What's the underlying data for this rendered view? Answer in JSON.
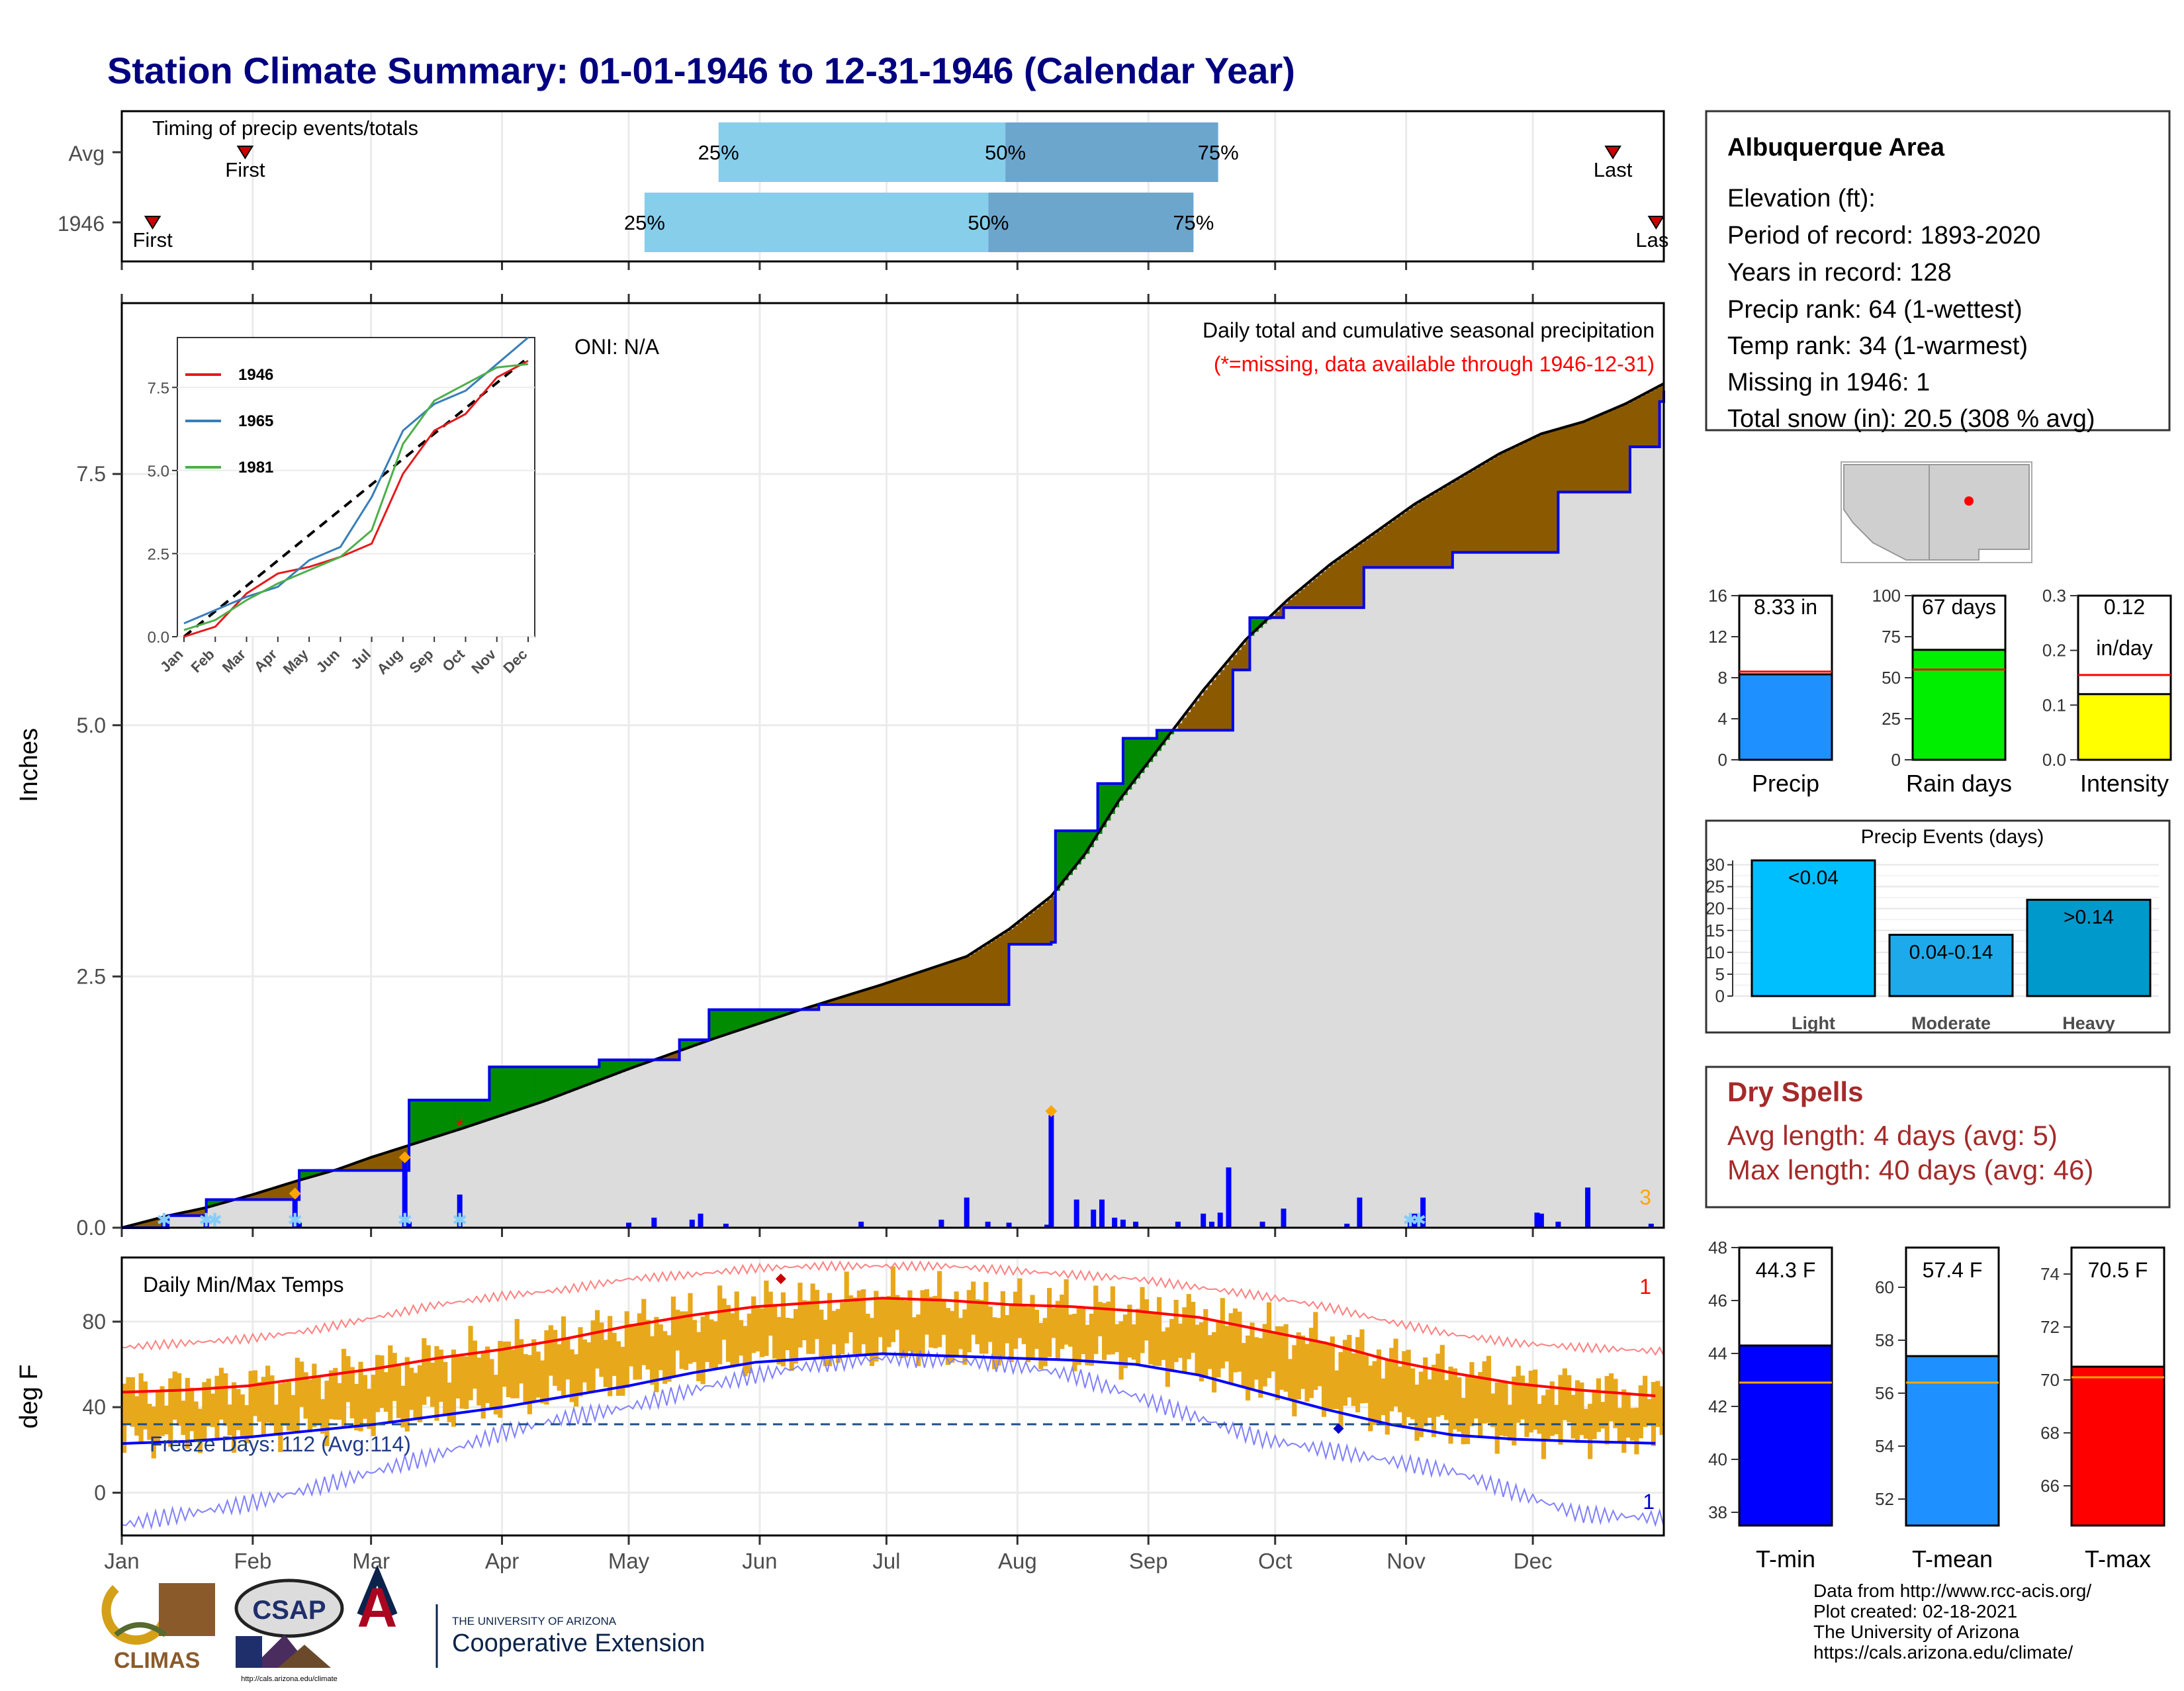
{
  "title": "Station Climate Summary: 01-01-1946 to 12-31-1946 (Calendar Year)",
  "months": [
    "Jan",
    "Feb",
    "Mar",
    "Apr",
    "May",
    "Jun",
    "Jul",
    "Aug",
    "Sep",
    "Oct",
    "Nov",
    "Dec"
  ],
  "timing": {
    "label": "Timing of precip events/totals",
    "rows": [
      {
        "name": "Avg",
        "first": 0.08,
        "p25": 0.387,
        "p50": 0.573,
        "p75": 0.711,
        "last": 0.967
      },
      {
        "name": "1946",
        "first": 0.02,
        "p25": 0.339,
        "p50": 0.562,
        "p75": 0.695,
        "last": 0.995
      }
    ],
    "first_label": "First",
    "last_label": "Last",
    "last_label_clipped": "Las",
    "p25_label": "25%",
    "p50_label": "50%",
    "p75_label": "75%"
  },
  "precip_panel": {
    "ylabel": "Inches",
    "oni": "ONI: N/A",
    "title": "Daily total and cumulative seasonal precipitation",
    "subtitle": "(*=missing, data available through 1946-12-31)",
    "yticks": [
      "0.0",
      "2.5",
      "5.0",
      "7.5"
    ],
    "count_label": "3"
  },
  "inset": {
    "yticks": [
      "0.0",
      "2.5",
      "5.0",
      "7.5"
    ],
    "months": [
      "Jan",
      "Feb",
      "Mar",
      "Apr",
      "May",
      "Jun",
      "Jul",
      "Aug",
      "Sep",
      "Oct",
      "Nov",
      "Dec"
    ],
    "legend": [
      "1946",
      "1965",
      "1981"
    ]
  },
  "temp_panel": {
    "ylabel": "deg F",
    "title": "Daily Min/Max Temps",
    "freeze_label": "Freeze Days: 112 (Avg:114)",
    "yticks": [
      "0",
      "40",
      "80"
    ],
    "count_top": "1",
    "count_bottom": "1"
  },
  "station": {
    "name": "Albuquerque Area",
    "lines": [
      "Elevation (ft):",
      "Period of record: 1893-2020",
      "Years in record: 128",
      "Precip rank: 64 (1-wettest)",
      "Temp rank: 34 (1-warmest)",
      "Missing in 1946: 1",
      "Total snow (in): 20.5 (308 % avg)"
    ]
  },
  "mini_bars": [
    {
      "label": "Precip",
      "value_text": "8.33 in",
      "ticks": [
        "0",
        "4",
        "8",
        "12",
        "16"
      ],
      "color": "#1e90ff"
    },
    {
      "label": "Rain days",
      "value_text": "67 days",
      "ticks": [
        "0",
        "25",
        "50",
        "75",
        "100"
      ],
      "color": "#00ee00"
    },
    {
      "label": "Intensity",
      "value_text": "0.12",
      "value_text2": "in/day",
      "ticks": [
        "0.0",
        "0.1",
        "0.2",
        "0.3"
      ],
      "color": "#ffff00"
    }
  ],
  "events": {
    "title": "Precip Events (days)",
    "categories": [
      "Light",
      "Moderate",
      "Heavy"
    ],
    "labels": [
      "<0.04",
      "0.04-0.14",
      ">0.14"
    ],
    "ticks": [
      "0",
      "5",
      "10",
      "15",
      "20",
      "25",
      "30"
    ]
  },
  "dry_spells": {
    "title": "Dry Spells",
    "avg": "Avg length: 4 days (avg: 5)",
    "max": "Max length: 40 days (avg: 46)"
  },
  "temp_bars": [
    {
      "label": "T-min",
      "value_text": "44.3 F",
      "ticks": [
        "38",
        "40",
        "42",
        "44",
        "46",
        "48"
      ],
      "color": "#0000ff"
    },
    {
      "label": "T-mean",
      "value_text": "57.4 F",
      "ticks": [
        "52",
        "54",
        "56",
        "58",
        "60"
      ],
      "color": "#1e90ff"
    },
    {
      "label": "T-max",
      "value_text": "70.5 F",
      "ticks": [
        "66",
        "68",
        "70",
        "72",
        "74"
      ],
      "color": "#ff0000"
    }
  ],
  "footer": {
    "lines": [
      "Data from http://www.rcc-acis.org/",
      "Plot created: 02-18-2021",
      "The University of Arizona",
      "https://cals.arizona.edu/climate/"
    ]
  },
  "logos": {
    "climas": "CLIMAS",
    "csap": "CSAP",
    "csap_url": "http://cals.arizona.edu/climate",
    "ua_small": "THE UNIVERSITY OF ARIZONA",
    "coop": "Cooperative Extension",
    "ua_letter": "A"
  },
  "chart_data": [
    {
      "type": "area",
      "name": "cumulative precipitation",
      "title": "Daily total and cumulative seasonal precipitation",
      "ylabel": "Inches",
      "ylim": [
        0,
        9.2
      ],
      "observed_1946": [
        [
          0,
          0
        ],
        [
          11,
          0.12
        ],
        [
          20,
          0.28
        ],
        [
          41,
          0.28
        ],
        [
          42,
          0.57
        ],
        [
          67,
          0.57
        ],
        [
          68,
          1.27
        ],
        [
          86,
          1.27
        ],
        [
          87,
          1.6
        ],
        [
          112,
          1.6
        ],
        [
          113,
          1.67
        ],
        [
          131,
          1.67
        ],
        [
          132,
          1.87
        ],
        [
          138,
          1.87
        ],
        [
          139,
          2.17
        ],
        [
          161,
          2.17
        ],
        [
          165,
          2.22
        ],
        [
          210,
          2.82
        ],
        [
          219,
          2.82
        ],
        [
          220,
          2.84
        ],
        [
          221,
          3.95
        ],
        [
          230,
          3.95
        ],
        [
          231,
          4.42
        ],
        [
          236,
          4.42
        ],
        [
          237,
          4.87
        ],
        [
          244,
          4.87
        ],
        [
          245,
          4.95
        ],
        [
          262,
          4.95
        ],
        [
          263,
          5.55
        ],
        [
          266,
          5.55
        ],
        [
          267,
          6.07
        ],
        [
          274,
          6.07
        ],
        [
          275,
          6.17
        ],
        [
          293,
          6.17
        ],
        [
          294,
          6.57
        ],
        [
          314,
          6.57
        ],
        [
          315,
          6.72
        ],
        [
          339,
          6.72
        ],
        [
          340,
          7.32
        ],
        [
          356,
          7.32
        ],
        [
          357,
          7.77
        ],
        [
          363,
          7.77
        ],
        [
          364,
          8.22
        ],
        [
          430,
          8.22
        ],
        [
          431,
          8.33
        ]
      ],
      "average": [
        [
          0,
          0
        ],
        [
          11,
          0.12
        ],
        [
          20,
          0.2
        ],
        [
          31,
          0.33
        ],
        [
          41,
          0.46
        ],
        [
          51,
          0.58
        ],
        [
          59,
          0.7
        ],
        [
          80,
          0.98
        ],
        [
          100,
          1.26
        ],
        [
          120,
          1.58
        ],
        [
          140,
          1.88
        ],
        [
          160,
          2.16
        ],
        [
          180,
          2.42
        ],
        [
          200,
          2.7
        ],
        [
          210,
          2.97
        ],
        [
          220,
          3.3
        ],
        [
          228,
          3.72
        ],
        [
          236,
          4.25
        ],
        [
          246,
          4.8
        ],
        [
          256,
          5.35
        ],
        [
          266,
          5.85
        ],
        [
          276,
          6.25
        ],
        [
          286,
          6.6
        ],
        [
          296,
          6.9
        ],
        [
          306,
          7.2
        ],
        [
          316,
          7.45
        ],
        [
          326,
          7.7
        ],
        [
          336,
          7.9
        ],
        [
          346,
          8.02
        ],
        [
          356,
          8.2
        ],
        [
          365,
          8.4
        ]
      ],
      "daily_precip": [
        [
          10,
          0.06
        ],
        [
          20,
          0.05
        ],
        [
          41,
          0.29
        ],
        [
          42,
          0.05
        ],
        [
          67,
          0.7
        ],
        [
          68,
          0.06
        ],
        [
          80,
          0.33
        ],
        [
          120,
          0.05
        ],
        [
          126,
          0.1
        ],
        [
          135,
          0.08
        ],
        [
          137,
          0.14
        ],
        [
          143,
          0.04
        ],
        [
          175,
          0.06
        ],
        [
          194,
          0.08
        ],
        [
          200,
          0.3
        ],
        [
          205,
          0.06
        ],
        [
          210,
          0.05
        ],
        [
          219,
          0.03
        ],
        [
          220,
          1.12
        ],
        [
          226,
          0.28
        ],
        [
          230,
          0.18
        ],
        [
          232,
          0.28
        ],
        [
          235,
          0.1
        ],
        [
          237,
          0.08
        ],
        [
          240,
          0.06
        ],
        [
          250,
          0.06
        ],
        [
          256,
          0.14
        ],
        [
          258,
          0.06
        ],
        [
          260,
          0.15
        ],
        [
          262,
          0.6
        ],
        [
          270,
          0.06
        ],
        [
          275,
          0.19
        ],
        [
          290,
          0.04
        ],
        [
          293,
          0.3
        ],
        [
          305,
          0.09
        ],
        [
          306,
          0.14
        ],
        [
          308,
          0.3
        ],
        [
          335,
          0.15
        ],
        [
          336,
          0.14
        ],
        [
          340,
          0.06
        ],
        [
          347,
          0.4
        ],
        [
          362,
          0.04
        ]
      ],
      "missing_days": [
        80
      ]
    },
    {
      "type": "line",
      "name": "inset cumulative precipitation",
      "x": [
        "Jan",
        "Feb",
        "Mar",
        "Apr",
        "May",
        "Jun",
        "Jul",
        "Aug",
        "Sep",
        "Oct",
        "Nov",
        "Dec"
      ],
      "ylim": [
        0,
        9
      ],
      "series": [
        {
          "name": "1946",
          "values": [
            0.0,
            0.3,
            1.3,
            1.9,
            2.1,
            2.4,
            2.8,
            4.9,
            6.2,
            6.7,
            7.8,
            8.3
          ]
        },
        {
          "name": "1965",
          "values": [
            0.4,
            0.8,
            1.2,
            1.5,
            2.3,
            2.7,
            4.2,
            6.2,
            7.0,
            7.4,
            8.2,
            9.0
          ]
        },
        {
          "name": "1981",
          "values": [
            0.2,
            0.5,
            1.1,
            1.6,
            2.0,
            2.4,
            3.2,
            5.8,
            7.1,
            7.6,
            8.1,
            8.2
          ]
        }
      ]
    },
    {
      "type": "area",
      "name": "daily min/max temps",
      "title": "Daily Min/Max Temps",
      "ylabel": "deg F",
      "ylim": [
        -20,
        110
      ],
      "x": [
        0,
        15,
        30,
        45,
        60,
        75,
        90,
        105,
        120,
        135,
        150,
        165,
        180,
        195,
        210,
        225,
        240,
        255,
        270,
        285,
        300,
        315,
        330,
        345,
        365
      ],
      "avg_max": [
        47,
        48,
        50,
        54,
        58,
        63,
        67,
        72,
        78,
        83,
        87,
        89,
        91,
        90,
        88,
        87,
        85,
        82,
        76,
        70,
        62,
        56,
        51,
        48,
        45
      ],
      "avg_min": [
        23,
        24,
        26,
        29,
        32,
        36,
        40,
        45,
        50,
        56,
        61,
        63,
        65,
        64,
        63,
        62,
        60,
        55,
        47,
        39,
        32,
        27,
        25,
        24,
        23
      ],
      "record_max": [
        68,
        70,
        72,
        76,
        82,
        88,
        92,
        95,
        100,
        102,
        105,
        106,
        106,
        106,
        104,
        102,
        100,
        96,
        92,
        87,
        80,
        74,
        70,
        68,
        66
      ],
      "record_min": [
        -15,
        -10,
        -5,
        2,
        10,
        18,
        28,
        35,
        40,
        48,
        55,
        60,
        63,
        62,
        60,
        55,
        45,
        35,
        25,
        20,
        15,
        10,
        0,
        -10,
        -12
      ],
      "freeze_line": 32
    },
    {
      "type": "bar",
      "name": "summary bars",
      "categories": [
        "Precip",
        "Rain days",
        "Intensity"
      ],
      "values": [
        8.33,
        67,
        0.12
      ],
      "averages": [
        8.6,
        55,
        0.155
      ],
      "ylim": [
        [
          0,
          16
        ],
        [
          0,
          100
        ],
        [
          0,
          0.3
        ]
      ]
    },
    {
      "type": "bar",
      "name": "Precip Events (days)",
      "categories": [
        "Light",
        "Moderate",
        "Heavy"
      ],
      "values": [
        31,
        14,
        22
      ],
      "ylim": [
        0,
        31
      ]
    },
    {
      "type": "bar",
      "name": "temperature bars",
      "categories": [
        "T-min",
        "T-mean",
        "T-max"
      ],
      "values": [
        44.3,
        57.4,
        70.5
      ],
      "averages": [
        42.9,
        56.4,
        70.1
      ],
      "ylim": [
        [
          37.5,
          48
        ],
        [
          51,
          61.5
        ],
        [
          64.5,
          75
        ]
      ]
    }
  ]
}
